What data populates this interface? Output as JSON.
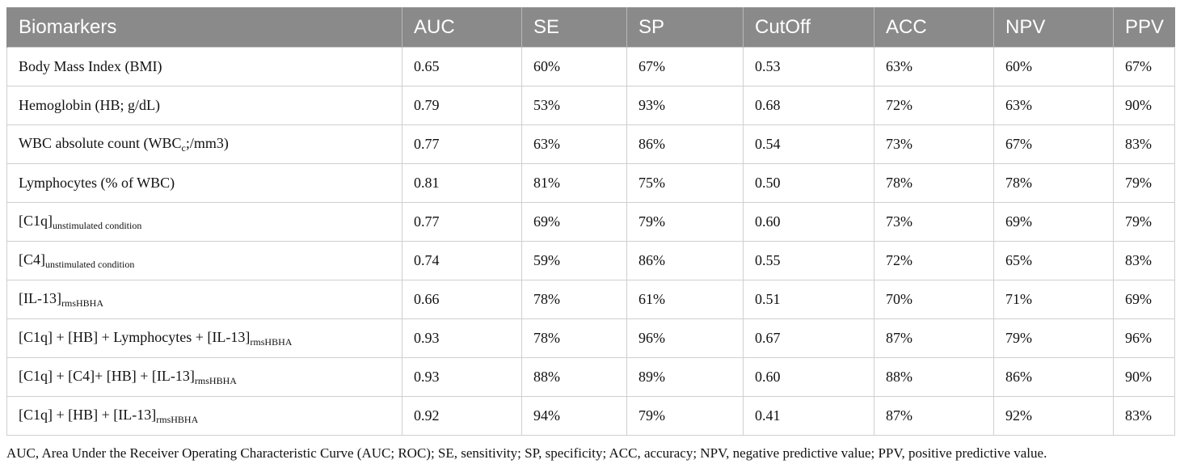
{
  "table": {
    "headers": [
      "Biomarkers",
      "AUC",
      "SE",
      "SP",
      "CutOff",
      "ACC",
      "NPV",
      "PPV"
    ],
    "rows": [
      {
        "name": "Body Mass Index (BMI)",
        "sub": "",
        "suffix": "",
        "values": [
          "0.65",
          "60%",
          "67%",
          "0.53",
          "63%",
          "60%",
          "67%"
        ]
      },
      {
        "name": "Hemoglobin (HB; g/dL)",
        "sub": "",
        "suffix": "",
        "values": [
          "0.79",
          "53%",
          "93%",
          "0.68",
          "72%",
          "63%",
          "90%"
        ]
      },
      {
        "name": "WBC absolute count (WBC",
        "sub": "c",
        "suffix": ";/mm3)",
        "values": [
          "0.77",
          "63%",
          "86%",
          "0.54",
          "73%",
          "67%",
          "83%"
        ]
      },
      {
        "name": "Lymphocytes (% of WBC)",
        "sub": "",
        "suffix": "",
        "values": [
          "0.81",
          "81%",
          "75%",
          "0.50",
          "78%",
          "78%",
          "79%"
        ]
      },
      {
        "name": "[C1q]",
        "sub": "unstimulated condition",
        "suffix": "",
        "values": [
          "0.77",
          "69%",
          "79%",
          "0.60",
          "73%",
          "69%",
          "79%"
        ]
      },
      {
        "name": "[C4]",
        "sub": "unstimulated condition",
        "suffix": "",
        "values": [
          "0.74",
          "59%",
          "86%",
          "0.55",
          "72%",
          "65%",
          "83%"
        ]
      },
      {
        "name": "[IL-13]",
        "sub": "rmsHBHA",
        "suffix": "",
        "values": [
          "0.66",
          "78%",
          "61%",
          "0.51",
          "70%",
          "71%",
          "69%"
        ]
      },
      {
        "name": "[C1q] + [HB] + Lymphocytes + [IL-13]",
        "sub": "rmsHBHA",
        "suffix": "",
        "values": [
          "0.93",
          "78%",
          "96%",
          "0.67",
          "87%",
          "79%",
          "96%"
        ]
      },
      {
        "name": "[C1q] + [C4]+ [HB] + [IL-13]",
        "sub": "rmsHBHA",
        "suffix": "",
        "values": [
          "0.93",
          "88%",
          "89%",
          "0.60",
          "88%",
          "86%",
          "90%"
        ]
      },
      {
        "name": "[C1q] + [HB] + [IL-13]",
        "sub": "rmsHBHA",
        "suffix": "",
        "values": [
          "0.92",
          "94%",
          "79%",
          "0.41",
          "87%",
          "92%",
          "83%"
        ]
      }
    ]
  },
  "footnote": "AUC, Area Under the Receiver Operating Characteristic Curve (AUC; ROC); SE, sensitivity; SP, specificity; ACC, accuracy; NPV, negative predictive value; PPV, positive predictive value."
}
